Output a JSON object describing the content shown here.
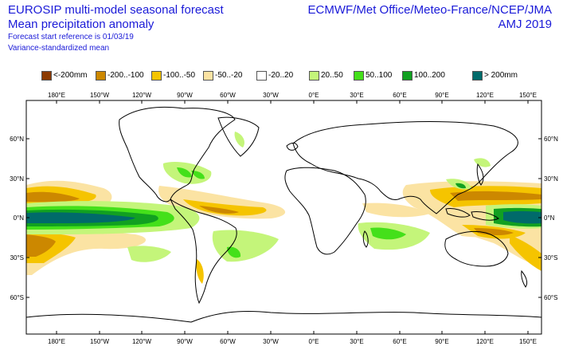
{
  "header": {
    "title": "EUROSIP multi-model seasonal forecast",
    "subtitle": "Mean precipitation anomaly",
    "forecast_start": "Forecast start reference is 01/03/19",
    "note": "Variance-standardized mean",
    "provider": "ECMWF/Met Office/Meteo-France/NCEP/JMA",
    "period": "AMJ 2019"
  },
  "legend": [
    {
      "label": "<-200mm",
      "color": "#8b3a00"
    },
    {
      "label": "-200..-100",
      "color": "#cc8800"
    },
    {
      "label": "-100..-50",
      "color": "#f5c400"
    },
    {
      "label": "-50..-20",
      "color": "#fbe3a3"
    },
    {
      "label": "-20..20",
      "color": "#ffffff"
    },
    {
      "label": "20..50",
      "color": "#c4f57a"
    },
    {
      "label": "50..100",
      "color": "#44e01a"
    },
    {
      "label": "100..200",
      "color": "#11a021"
    },
    {
      "label": "> 200mm",
      "color": "#006a6a"
    }
  ],
  "map": {
    "lon_ticks": [
      "180°E",
      "150°W",
      "120°W",
      "90°W",
      "60°W",
      "30°W",
      "0°E",
      "30°E",
      "60°E",
      "90°E",
      "120°E",
      "150°E"
    ],
    "lat_ticks": [
      "60°N",
      "30°N",
      "0°N",
      "30°S",
      "60°S"
    ]
  }
}
